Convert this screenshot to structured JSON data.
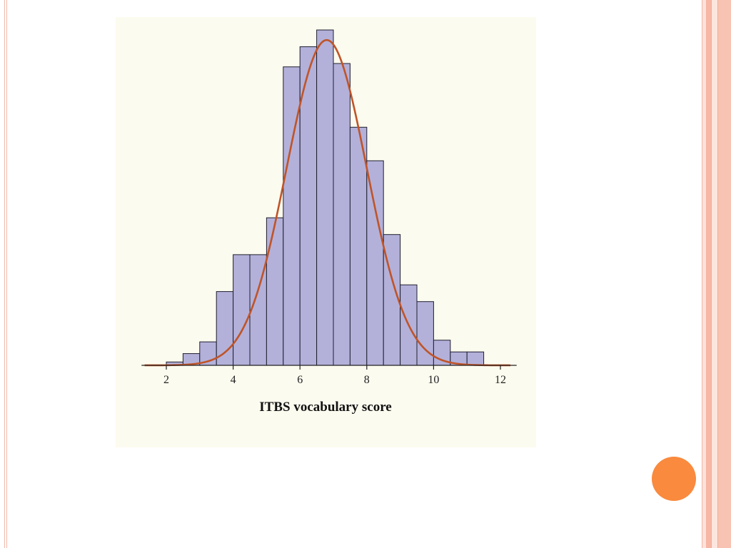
{
  "chart_data": {
    "type": "bar",
    "title": "",
    "xlabel": "ITBS vocabulary score",
    "ylabel": "",
    "xlim": [
      1.3,
      12.4
    ],
    "x_ticks": [
      2,
      4,
      6,
      8,
      10,
      12
    ],
    "bin_width": 0.5,
    "bins": [
      {
        "start": 2.0,
        "value": 1.0
      },
      {
        "start": 2.5,
        "value": 3.5
      },
      {
        "start": 3.0,
        "value": 7.0
      },
      {
        "start": 3.5,
        "value": 22.0
      },
      {
        "start": 4.0,
        "value": 33.0
      },
      {
        "start": 4.5,
        "value": 33.0
      },
      {
        "start": 5.0,
        "value": 44.0
      },
      {
        "start": 5.5,
        "value": 89.0
      },
      {
        "start": 6.0,
        "value": 95.0
      },
      {
        "start": 6.5,
        "value": 100.0
      },
      {
        "start": 7.0,
        "value": 90.0
      },
      {
        "start": 7.5,
        "value": 71.0
      },
      {
        "start": 8.0,
        "value": 61.0
      },
      {
        "start": 8.5,
        "value": 39.0
      },
      {
        "start": 9.0,
        "value": 24.0
      },
      {
        "start": 9.5,
        "value": 19.0
      },
      {
        "start": 10.0,
        "value": 7.5
      },
      {
        "start": 10.5,
        "value": 4.0
      },
      {
        "start": 11.0,
        "value": 4.0
      }
    ],
    "curve": {
      "type": "normal",
      "mean": 6.8,
      "sd": 1.2,
      "peak": 97,
      "color": "#c05428"
    },
    "bar_fill": "#b3b1da",
    "bar_stroke": "#1f1f2e",
    "background": "#fcfbef",
    "grid": false,
    "legend": "none"
  },
  "decor": {
    "accent_color": "#f98a3e",
    "border_color": "#f6b7a4"
  }
}
